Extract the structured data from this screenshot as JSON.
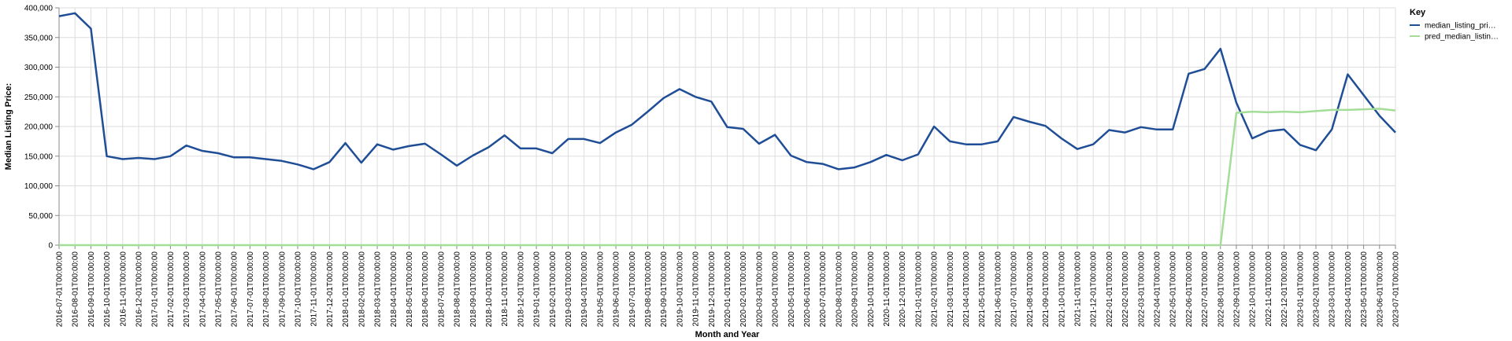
{
  "chart_data": {
    "type": "line",
    "xlabel": "Month and Year",
    "ylabel": "Median Listing Price:",
    "ylim": [
      0,
      400000
    ],
    "yticks": [
      "0",
      "50,000",
      "100,000",
      "150,000",
      "200,000",
      "250,000",
      "300,000",
      "350,000",
      "400,000"
    ],
    "grid": true,
    "legend": {
      "title": "Key",
      "position": "right"
    },
    "categories": [
      "2016-07-01T00:00:00",
      "2016-08-01T00:00:00",
      "2016-09-01T00:00:00",
      "2016-10-01T00:00:00",
      "2016-11-01T00:00:00",
      "2016-12-01T00:00:00",
      "2017-01-01T00:00:00",
      "2017-02-01T00:00:00",
      "2017-03-01T00:00:00",
      "2017-04-01T00:00:00",
      "2017-05-01T00:00:00",
      "2017-06-01T00:00:00",
      "2017-07-01T00:00:00",
      "2017-08-01T00:00:00",
      "2017-09-01T00:00:00",
      "2017-10-01T00:00:00",
      "2017-11-01T00:00:00",
      "2017-12-01T00:00:00",
      "2018-01-01T00:00:00",
      "2018-02-01T00:00:00",
      "2018-03-01T00:00:00",
      "2018-04-01T00:00:00",
      "2018-05-01T00:00:00",
      "2018-06-01T00:00:00",
      "2018-07-01T00:00:00",
      "2018-08-01T00:00:00",
      "2018-09-01T00:00:00",
      "2018-10-01T00:00:00",
      "2018-11-01T00:00:00",
      "2018-12-01T00:00:00",
      "2019-01-01T00:00:00",
      "2019-02-01T00:00:00",
      "2019-03-01T00:00:00",
      "2019-04-01T00:00:00",
      "2019-05-01T00:00:00",
      "2019-06-01T00:00:00",
      "2019-07-01T00:00:00",
      "2019-08-01T00:00:00",
      "2019-09-01T00:00:00",
      "2019-10-01T00:00:00",
      "2019-11-01T00:00:00",
      "2019-12-01T00:00:00",
      "2020-01-01T00:00:00",
      "2020-02-01T00:00:00",
      "2020-03-01T00:00:00",
      "2020-04-01T00:00:00",
      "2020-05-01T00:00:00",
      "2020-06-01T00:00:00",
      "2020-07-01T00:00:00",
      "2020-08-01T00:00:00",
      "2020-09-01T00:00:00",
      "2020-10-01T00:00:00",
      "2020-11-01T00:00:00",
      "2020-12-01T00:00:00",
      "2021-01-01T00:00:00",
      "2021-02-01T00:00:00",
      "2021-03-01T00:00:00",
      "2021-04-01T00:00:00",
      "2021-05-01T00:00:00",
      "2021-06-01T00:00:00",
      "2021-07-01T00:00:00",
      "2021-08-01T00:00:00",
      "2021-09-01T00:00:00",
      "2021-10-01T00:00:00",
      "2021-11-01T00:00:00",
      "2021-12-01T00:00:00",
      "2022-01-01T00:00:00",
      "2022-02-01T00:00:00",
      "2022-03-01T00:00:00",
      "2022-04-01T00:00:00",
      "2022-05-01T00:00:00",
      "2022-06-01T00:00:00",
      "2022-07-01T00:00:00",
      "2022-08-01T00:00:00",
      "2022-09-01T00:00:00",
      "2022-10-01T00:00:00",
      "2022-11-01T00:00:00",
      "2022-12-01T00:00:00",
      "2023-01-01T00:00:00",
      "2023-02-01T00:00:00",
      "2023-03-01T00:00:00",
      "2023-04-01T00:00:00",
      "2023-05-01T00:00:00",
      "2023-06-01T00:00:00",
      "2023-07-01T00:00:00"
    ],
    "series": [
      {
        "name": "median_listing_pri…",
        "color": "#1f4e96",
        "values": [
          386000,
          391000,
          365000,
          150000,
          145000,
          147000,
          145000,
          150000,
          168000,
          159000,
          155000,
          148000,
          148000,
          145000,
          142000,
          136000,
          128000,
          140000,
          172000,
          139000,
          170000,
          161000,
          167000,
          171000,
          153000,
          134000,
          151000,
          165000,
          185000,
          163000,
          163000,
          155000,
          179000,
          179000,
          172000,
          190000,
          203000,
          225000,
          248000,
          263000,
          250000,
          242000,
          199000,
          196000,
          171000,
          186000,
          151000,
          140000,
          137000,
          128000,
          131000,
          140000,
          152000,
          143000,
          153000,
          200000,
          175000,
          170000,
          170000,
          175000,
          216000,
          208000,
          201000,
          180000,
          162000,
          170000,
          194000,
          190000,
          199000,
          195000,
          195000,
          289000,
          297000,
          331000,
          240000,
          180000,
          192000,
          195000,
          169000,
          160000,
          195000,
          288000,
          253000,
          218000,
          190000
        ]
      },
      {
        "name": "pred_median_listin…",
        "color": "#a4dd98",
        "values": [
          0,
          0,
          0,
          0,
          0,
          0,
          0,
          0,
          0,
          0,
          0,
          0,
          0,
          0,
          0,
          0,
          0,
          0,
          0,
          0,
          0,
          0,
          0,
          0,
          0,
          0,
          0,
          0,
          0,
          0,
          0,
          0,
          0,
          0,
          0,
          0,
          0,
          0,
          0,
          0,
          0,
          0,
          0,
          0,
          0,
          0,
          0,
          0,
          0,
          0,
          0,
          0,
          0,
          0,
          0,
          0,
          0,
          0,
          0,
          0,
          0,
          0,
          0,
          0,
          0,
          0,
          0,
          0,
          0,
          0,
          0,
          0,
          0,
          0,
          223000,
          225000,
          224000,
          225000,
          224000,
          226000,
          228000,
          228000,
          229000,
          230000,
          227000
        ]
      }
    ]
  }
}
